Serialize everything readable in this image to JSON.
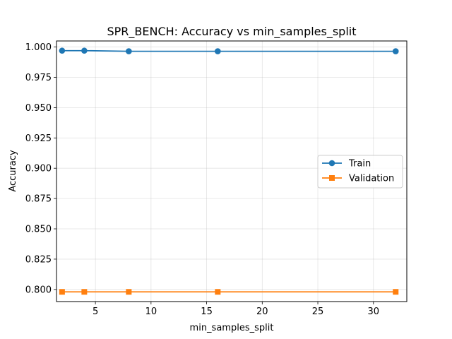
{
  "chart_data": {
    "type": "line",
    "title": "SPR_BENCH: Accuracy vs min_samples_split",
    "xlabel": "min_samples_split",
    "ylabel": "Accuracy",
    "xlim": [
      1.5,
      33
    ],
    "ylim": [
      0.79,
      1.005
    ],
    "xticks": [
      5,
      10,
      15,
      20,
      25,
      30
    ],
    "xtick_labels": [
      "5",
      "10",
      "15",
      "20",
      "25",
      "30"
    ],
    "yticks": [
      0.8,
      0.825,
      0.85,
      0.875,
      0.9,
      0.925,
      0.95,
      0.975,
      1.0
    ],
    "ytick_labels": [
      "0.800",
      "0.825",
      "0.850",
      "0.875",
      "0.900",
      "0.925",
      "0.950",
      "0.975",
      "1.000"
    ],
    "grid": true,
    "legend_position": "center-right",
    "x": [
      2,
      4,
      8,
      16,
      32
    ],
    "series": [
      {
        "name": "Train",
        "values": [
          0.997,
          0.997,
          0.9965,
          0.9965,
          0.9965
        ],
        "color": "#1f77b4",
        "marker": "circle"
      },
      {
        "name": "Validation",
        "values": [
          0.798,
          0.798,
          0.798,
          0.798,
          0.798
        ],
        "color": "#ff7f0e",
        "marker": "square"
      }
    ]
  }
}
